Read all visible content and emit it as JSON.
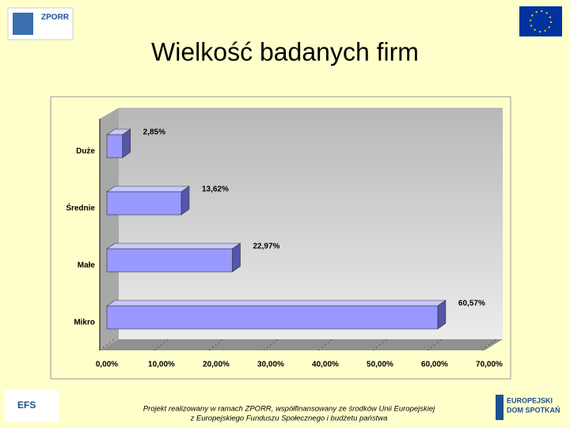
{
  "chart_data": {
    "type": "bar3d-horizontal",
    "title": "Wielkość badanych firm",
    "categories": [
      "Duże",
      "Średnie",
      "Małe",
      "Mikro"
    ],
    "values": [
      2.85,
      13.62,
      22.97,
      60.57
    ],
    "value_labels": [
      "2,85%",
      "13,62%",
      "22,97%",
      "60,57%"
    ],
    "color": "#9999ff",
    "xlim": [
      0,
      70
    ],
    "xticks": [
      {
        "value": 0,
        "label": "0,00%"
      },
      {
        "value": 10,
        "label": "10,00%"
      },
      {
        "value": 20,
        "label": "20,00%"
      },
      {
        "value": 30,
        "label": "30,00%"
      },
      {
        "value": 40,
        "label": "40,00%"
      },
      {
        "value": 50,
        "label": "50,00%"
      },
      {
        "value": 60,
        "label": "60,00%"
      },
      {
        "value": 70,
        "label": "70,00%"
      }
    ]
  },
  "logos": {
    "zporr": "ZPORR",
    "efs": "EFS",
    "eds_1": "EUROPEJSKI",
    "eds_2": "DOM SPOTKAŃ"
  },
  "footer": {
    "line1": "Projekt realizowany w ramach ZPORR, współfinansowany ze środków Unii Europejskiej",
    "line2": "z Europejskiego Funduszu Społecznego i budżetu państwa"
  }
}
